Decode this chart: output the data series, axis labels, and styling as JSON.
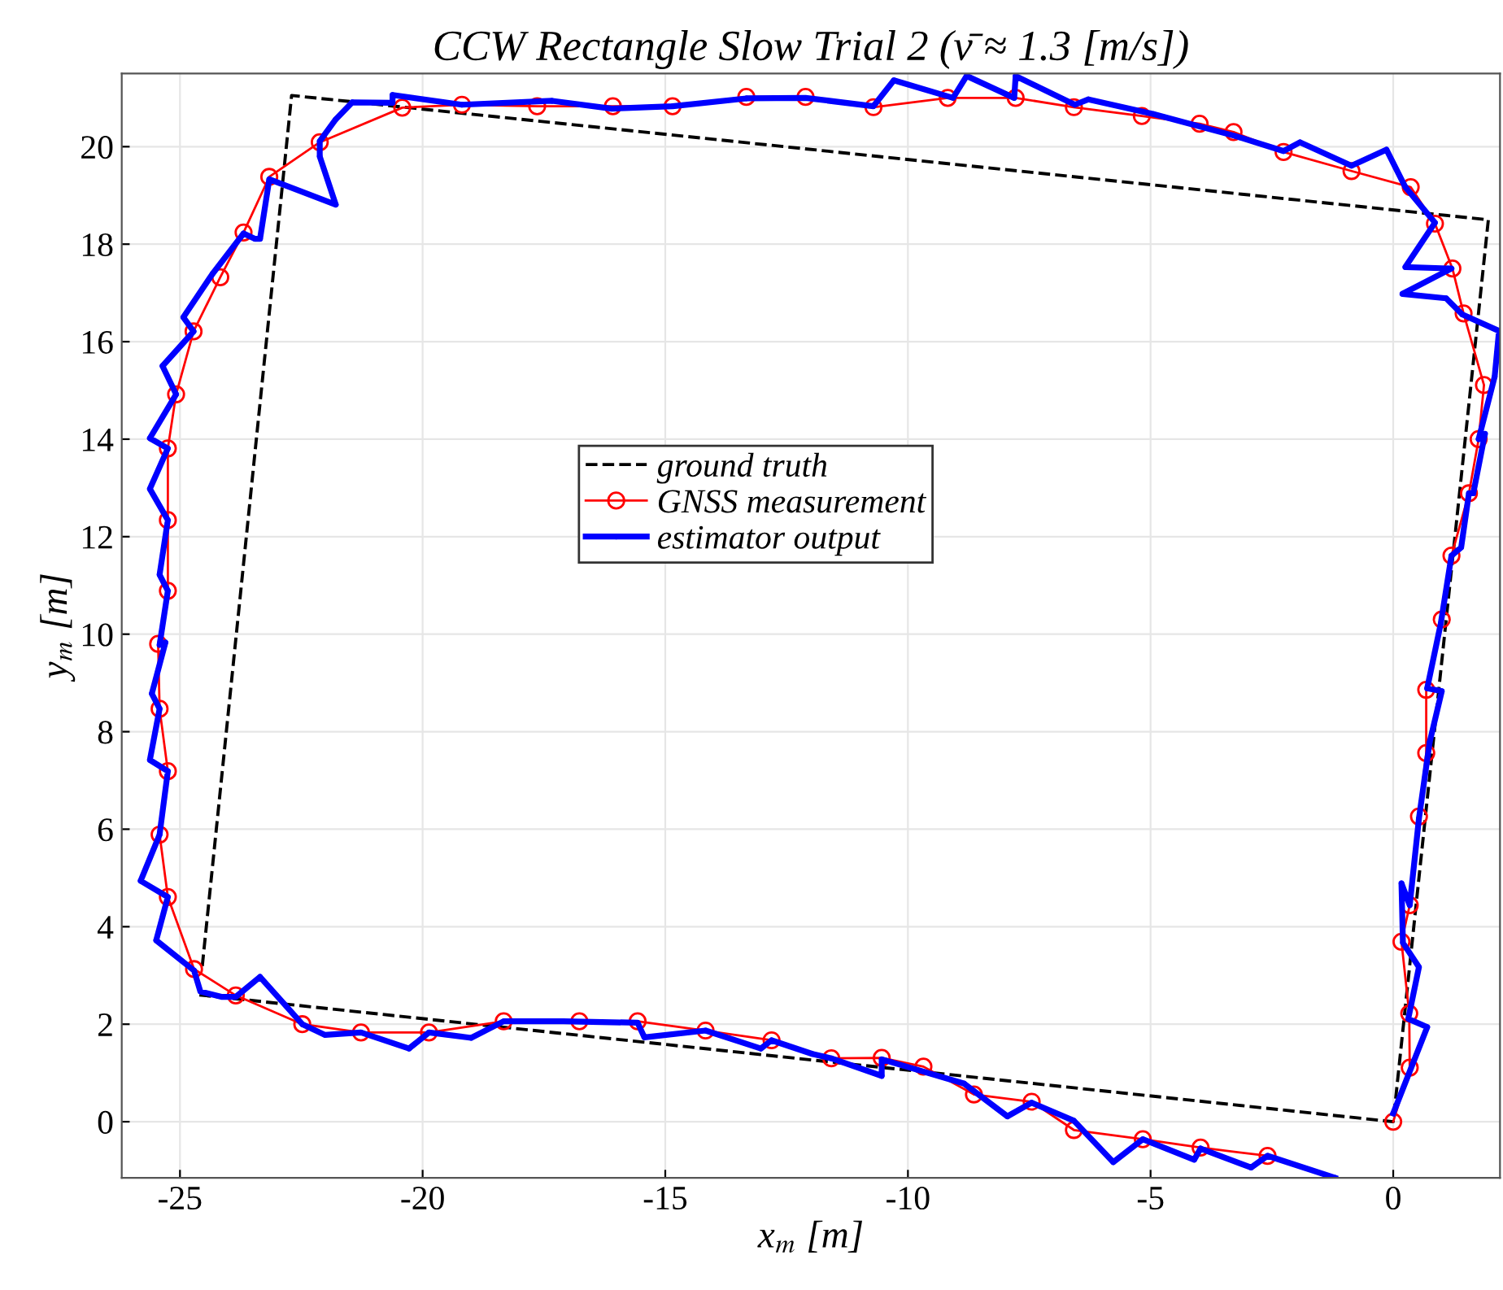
{
  "chart_data": {
    "type": "line",
    "title": "CCW Rectangle Slow Trial 2 (v̄ ≈ 1.3 [m/s])",
    "xlabel": "x$_{m}$ [m]",
    "ylabel": "y$_{m}$ [m]",
    "xlim": [
      -26.2,
      2.2
    ],
    "ylim": [
      -1.15,
      21.5
    ],
    "xticks": [
      -25,
      -20,
      -15,
      -10,
      -5,
      0
    ],
    "yticks": [
      0,
      2,
      4,
      6,
      8,
      10,
      12,
      14,
      16,
      18,
      20
    ],
    "grid": true,
    "legend": "center",
    "series": [
      {
        "name": "ground truth",
        "color": "#000000",
        "line_style": "dashed",
        "marker": "none",
        "x": [
          -24.6,
          0,
          1.96,
          -22.7,
          -24.55
        ],
        "values": [
          2.6,
          0,
          18.5,
          21.05,
          3.1
        ]
      },
      {
        "name": "GNSS measurement",
        "color": "#ff0000",
        "line_style": "solid",
        "marker": "circle",
        "x": [
          0,
          0.34,
          0.33,
          0.17,
          0.34,
          0.53,
          0.68,
          0.68,
          1.0,
          1.2,
          1.56,
          1.76,
          1.87,
          1.45,
          1.22,
          0.86,
          0.36,
          -0.86,
          -2.26,
          -3.29,
          -3.99,
          -5.18,
          -6.58,
          -7.78,
          -9.18,
          -10.71,
          -12.11,
          -13.33,
          -14.85,
          -16.08,
          -17.64,
          -19.19,
          -20.42,
          -22.12,
          -23.16,
          -23.69,
          -24.17,
          -24.72,
          -25.08,
          -25.25,
          -25.25,
          -25.25,
          -25.45,
          -25.42,
          -25.25,
          -25.42,
          -25.25,
          -24.71,
          -23.85,
          -22.48,
          -21.27,
          -19.87,
          -18.33,
          -16.77,
          -15.57,
          -14.17,
          -12.81,
          -11.58,
          -10.54,
          -9.68,
          -8.64,
          -7.45,
          -6.58,
          -5.16,
          -3.97,
          -2.59
        ],
        "values": [
          0,
          1.11,
          2.22,
          3.69,
          4.44,
          6.26,
          7.56,
          8.86,
          10.3,
          11.61,
          12.89,
          14.0,
          15.11,
          16.58,
          17.5,
          18.42,
          19.17,
          19.5,
          19.89,
          20.3,
          20.47,
          20.63,
          20.81,
          21.0,
          21.0,
          20.81,
          21.02,
          21.02,
          20.83,
          20.83,
          20.83,
          20.86,
          20.8,
          20.09,
          19.38,
          18.24,
          17.32,
          16.21,
          14.92,
          13.81,
          12.34,
          10.89,
          9.8,
          8.47,
          7.19,
          5.89,
          4.61,
          3.13,
          2.59,
          2.0,
          1.83,
          1.83,
          2.06,
          2.06,
          2.06,
          1.87,
          1.67,
          1.3,
          1.31,
          1.13,
          0.56,
          0.41,
          -0.17,
          -0.36,
          -0.53,
          -0.7
        ]
      },
      {
        "name": "estimator output",
        "color": "#0000ff",
        "line_style": "solid",
        "marker": "point",
        "x": [
          0,
          0.7,
          0.31,
          0.53,
          0.2,
          0.17,
          0.34,
          0.53,
          0.75,
          1.0,
          0.7,
          0.98,
          1.2,
          1.4,
          1.56,
          1.65,
          1.89,
          1.76,
          2.09,
          2.18,
          1.42,
          1.09,
          0.19,
          1.2,
          0.25,
          0.86,
          0.25,
          -0.14,
          -0.86,
          -1.92,
          -2.26,
          -3.26,
          -4.94,
          -6.28,
          -6.56,
          -7.78,
          -7.81,
          -8.79,
          -9.07,
          -10.29,
          -10.71,
          -12.11,
          -13.33,
          -14.85,
          -16.1,
          -17.33,
          -19.19,
          -20.62,
          -20.62,
          -21.45,
          -21.79,
          -22.12,
          -22.12,
          -21.79,
          -23.16,
          -23.35,
          -23.46,
          -23.69,
          -24.33,
          -24.93,
          -24.72,
          -25.36,
          -25.08,
          -25.62,
          -25.25,
          -25.62,
          -25.25,
          -25.42,
          -25.25,
          -25.42,
          -25.3,
          -25.58,
          -25.42,
          -25.62,
          -25.25,
          -25.42,
          -25.81,
          -25.25,
          -25.49,
          -24.71,
          -24.58,
          -24.13,
          -23.85,
          -23.35,
          -22.48,
          -22.01,
          -21.27,
          -20.28,
          -19.87,
          -19.0,
          -18.33,
          -17.1,
          -15.57,
          -15.43,
          -14.17,
          -13.03,
          -12.81,
          -11.97,
          -11.58,
          -10.54,
          -10.54,
          -8.84,
          -7.95,
          -7.45,
          -6.58,
          -5.77,
          -5.16,
          -4.1,
          -3.97,
          -2.93,
          -2.59,
          -1.2
        ],
        "values": [
          0.17,
          1.94,
          2.11,
          3.17,
          3.67,
          4.89,
          4.44,
          6.22,
          7.78,
          8.83,
          8.89,
          10.22,
          11.61,
          11.78,
          12.89,
          12.89,
          14.11,
          14.0,
          15.28,
          16.22,
          16.56,
          16.89,
          16.98,
          17.5,
          17.53,
          18.44,
          19.17,
          19.94,
          19.61,
          20.09,
          19.91,
          20.22,
          20.67,
          20.97,
          20.86,
          21.45,
          21.0,
          21.45,
          21.0,
          21.36,
          20.83,
          21.0,
          20.99,
          20.83,
          20.78,
          20.94,
          20.86,
          21.06,
          20.9,
          20.91,
          20.56,
          20.11,
          19.8,
          18.81,
          19.33,
          18.11,
          18.11,
          18.22,
          17.39,
          16.5,
          16.21,
          15.5,
          14.92,
          14.02,
          13.81,
          12.98,
          12.34,
          11.22,
          10.89,
          9.78,
          9.83,
          8.78,
          8.47,
          7.42,
          7.19,
          5.89,
          4.94,
          4.61,
          3.72,
          3.1,
          2.67,
          2.56,
          2.56,
          2.97,
          2.0,
          1.78,
          1.83,
          1.5,
          1.83,
          1.72,
          2.06,
          2.06,
          2.03,
          1.73,
          1.87,
          1.5,
          1.67,
          1.39,
          1.3,
          0.94,
          1.28,
          0.78,
          0.11,
          0.39,
          0.02,
          -0.83,
          -0.36,
          -0.78,
          -0.55,
          -0.94,
          -0.7,
          -1.15
        ]
      }
    ]
  }
}
